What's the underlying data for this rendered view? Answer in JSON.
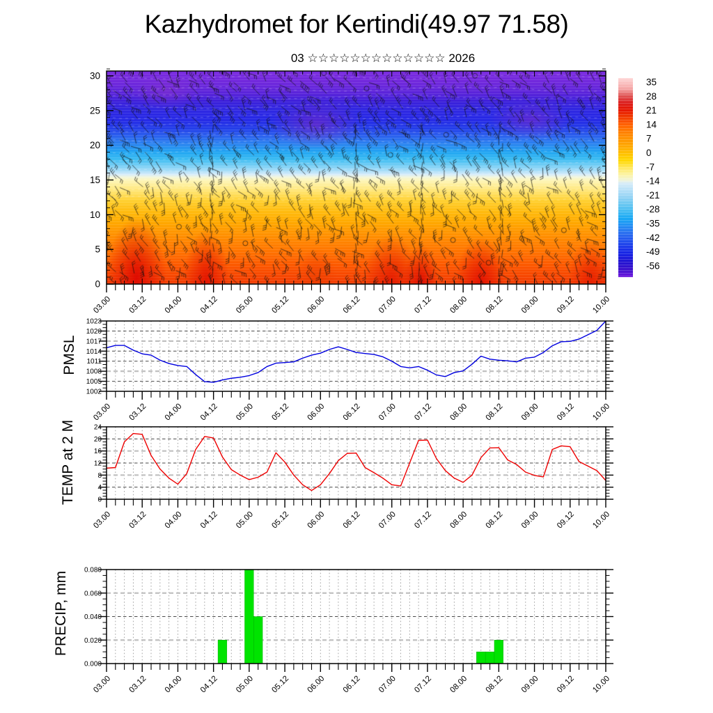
{
  "header": {
    "title": "Kazhydromet for Kertindi(49.97 71.58)",
    "subtitle": "03 ☆☆☆☆☆☆☆☆☆☆☆☆☆ 2026"
  },
  "x_axis": {
    "tick_labels": [
      "03.00",
      "03.12",
      "04.00",
      "04.12",
      "05.00",
      "05.12",
      "06.00",
      "06.12",
      "07.00",
      "07.12",
      "08.00",
      "08.12",
      "09.00",
      "09.12",
      "10.00"
    ],
    "minor_step_hours": 3
  },
  "chart_data": [
    {
      "id": "cross-section",
      "type": "heatmap",
      "ylabel": "",
      "ylim": [
        0,
        30.7
      ],
      "ytick_labels": [
        "0",
        "5",
        "10",
        "15",
        "20",
        "25",
        "30"
      ],
      "colorbar": {
        "tick_labels": [
          "35",
          "28",
          "21",
          "14",
          "7",
          "0",
          "-7",
          "-14",
          "-21",
          "-28",
          "-35",
          "-42",
          "-49",
          "-56"
        ],
        "top_color": "#ffd8d8",
        "bottom_color": "#6f16dd"
      }
    },
    {
      "id": "pmsl",
      "type": "line",
      "ylabel": "PMSL",
      "ylim": [
        1002,
        1023
      ],
      "ytick_labels": [
        "1002",
        "1005",
        "1008",
        "1011",
        "1014",
        "1017",
        "1020",
        "1023"
      ],
      "line_color": "#0000e0",
      "x_start": "03.00",
      "x_step_hours": 3,
      "values": [
        1015.0,
        1015.7,
        1015.7,
        1014.3,
        1013.2,
        1012.8,
        1011.3,
        1010.3,
        1009.7,
        1009.4,
        1007.0,
        1004.9,
        1004.7,
        1005.4,
        1005.9,
        1006.2,
        1006.7,
        1007.6,
        1009.4,
        1010.4,
        1010.6,
        1010.8,
        1011.9,
        1012.8,
        1013.4,
        1014.5,
        1015.3,
        1014.5,
        1013.6,
        1013.3,
        1013.0,
        1012.3,
        1011.0,
        1009.4,
        1009.0,
        1009.4,
        1008.3,
        1006.9,
        1006.4,
        1007.6,
        1008.1,
        1010.1,
        1012.5,
        1011.6,
        1011.3,
        1011.1,
        1010.8,
        1011.9,
        1012.2,
        1013.6,
        1015.6,
        1016.8,
        1016.9,
        1017.6,
        1018.9,
        1020.2,
        1023.0
      ]
    },
    {
      "id": "temp2m",
      "type": "line",
      "ylabel": "TEMP at 2 M",
      "ylim": [
        0,
        24
      ],
      "ytick_labels": [
        "0",
        "4",
        "8",
        "12",
        "16",
        "20",
        "24"
      ],
      "line_color": "#ee0000",
      "x_start": "03.00",
      "x_step_hours": 3,
      "values": [
        10.3,
        10.5,
        19.0,
        21.8,
        21.5,
        14.5,
        10.0,
        7.0,
        5.0,
        8.5,
        16.5,
        20.8,
        20.3,
        14.0,
        9.8,
        8.0,
        6.5,
        7.3,
        9.0,
        15.4,
        12.3,
        8.0,
        4.8,
        2.9,
        4.8,
        8.5,
        12.8,
        15.2,
        15.3,
        10.5,
        8.8,
        7.0,
        4.8,
        4.4,
        12.0,
        19.5,
        19.6,
        13.5,
        9.5,
        7.0,
        5.6,
        8.0,
        13.8,
        17.0,
        17.1,
        13.0,
        11.5,
        9.0,
        7.9,
        7.4,
        16.5,
        17.7,
        17.4,
        12.5,
        11.0,
        9.5,
        6.2
      ]
    },
    {
      "id": "precip",
      "type": "bar",
      "ylabel": "PRECIP, mm",
      "ylim": [
        0,
        0.08
      ],
      "ytick_labels": [
        "0.000",
        "0.020",
        "0.040",
        "0.060",
        "0.080"
      ],
      "bar_color": "#00e400",
      "bars": [
        {
          "time": "04.15",
          "value": 0.02
        },
        {
          "time": "05.00",
          "value": 0.08
        },
        {
          "time": "05.03",
          "value": 0.04
        },
        {
          "time": "08.06",
          "value": 0.01
        },
        {
          "time": "08.09",
          "value": 0.01
        },
        {
          "time": "08.12",
          "value": 0.02
        }
      ]
    }
  ]
}
